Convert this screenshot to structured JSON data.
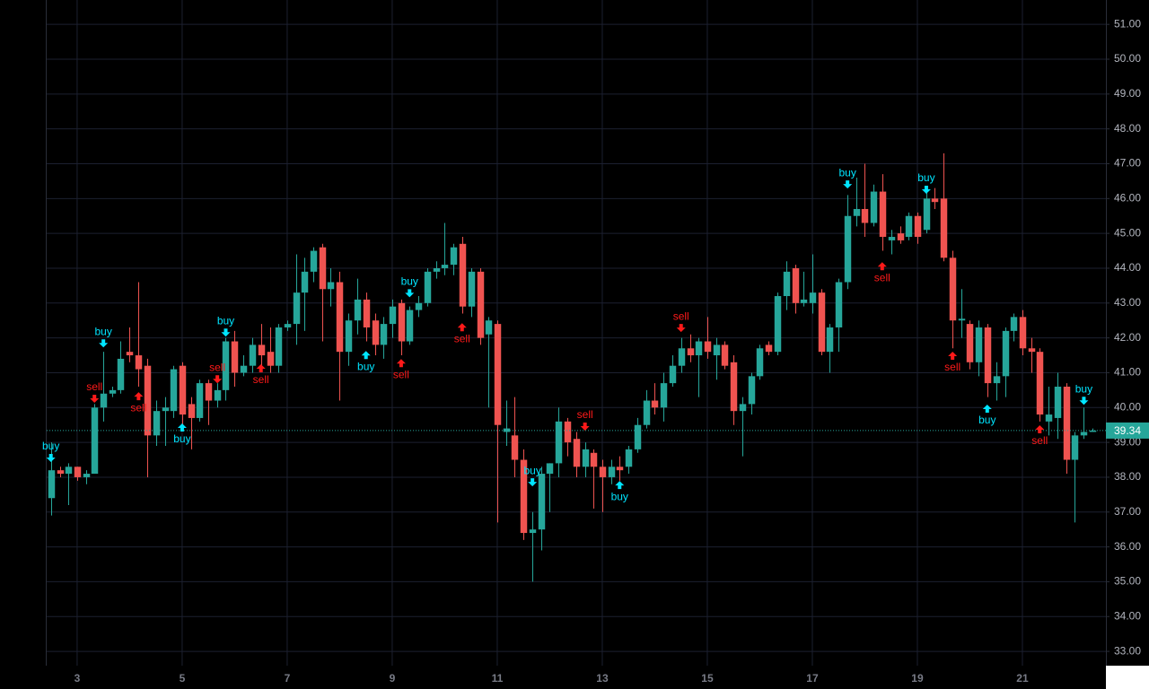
{
  "chart_data": {
    "type": "candlestick",
    "up_color": "#26a69a",
    "down_color": "#ef5350",
    "buy_color": "#00e5ff",
    "sell_color": "#ff1a1a",
    "grid": true,
    "xlim": [
      2.42,
      22.59
    ],
    "ylim": [
      32.59,
      51.7
    ],
    "xticks": [
      3,
      5,
      7,
      9,
      11,
      13,
      15,
      17,
      19,
      21
    ],
    "yticks": [
      {
        "value": 33,
        "label": "33.00"
      },
      {
        "value": 34,
        "label": "34.00"
      },
      {
        "value": 35,
        "label": "35.00"
      },
      {
        "value": 36,
        "label": "36.00"
      },
      {
        "value": 37,
        "label": "37.00"
      },
      {
        "value": 38,
        "label": "38.00"
      },
      {
        "value": 39,
        "label": "39.00"
      },
      {
        "value": 40,
        "label": "40.00"
      },
      {
        "value": 41,
        "label": "41.00"
      },
      {
        "value": 42,
        "label": "42.00"
      },
      {
        "value": 43,
        "label": "43.00"
      },
      {
        "value": 44,
        "label": "44.00"
      },
      {
        "value": 45,
        "label": "45.00"
      },
      {
        "value": 46,
        "label": "46.00"
      },
      {
        "value": 47,
        "label": "47.00"
      },
      {
        "value": 48,
        "label": "48.00"
      },
      {
        "value": 49,
        "label": "49.00"
      },
      {
        "value": 50,
        "label": "50.00"
      },
      {
        "value": 51,
        "label": "51.00"
      }
    ],
    "last_price": 39.34,
    "x": [
      2.5,
      2.67,
      2.83,
      3,
      3.17,
      3.33,
      3.5,
      3.67,
      3.83,
      4,
      4.17,
      4.33,
      4.5,
      4.67,
      4.83,
      5,
      5.17,
      5.33,
      5.5,
      5.67,
      5.83,
      6,
      6.17,
      6.33,
      6.5,
      6.67,
      6.83,
      7,
      7.17,
      7.33,
      7.5,
      7.67,
      7.83,
      8,
      8.17,
      8.33,
      8.5,
      8.67,
      8.83,
      9,
      9.17,
      9.33,
      9.5,
      9.67,
      9.83,
      10,
      10.17,
      10.33,
      10.5,
      10.67,
      10.83,
      11,
      11.17,
      11.33,
      11.5,
      11.67,
      11.83,
      12,
      12.17,
      12.33,
      12.5,
      12.67,
      12.83,
      13,
      13.17,
      13.33,
      13.5,
      13.67,
      13.83,
      14,
      14.17,
      14.33,
      14.5,
      14.67,
      14.83,
      15,
      15.17,
      15.33,
      15.5,
      15.67,
      15.83,
      16,
      16.17,
      16.33,
      16.5,
      16.67,
      16.83,
      17,
      17.17,
      17.33,
      17.5,
      17.67,
      17.83,
      18,
      18.17,
      18.33,
      18.5,
      18.67,
      18.83,
      19,
      19.17,
      19.33,
      19.5,
      19.67,
      19.83,
      20,
      20.17,
      20.33,
      20.5,
      20.67,
      20.83,
      21,
      21.17,
      21.33,
      21.5,
      21.67,
      21.83,
      22,
      22.17,
      22.33
    ],
    "open": [
      37.4,
      38.2,
      38.1,
      38.3,
      38.0,
      38.1,
      40.0,
      40.4,
      40.5,
      41.6,
      41.5,
      41.2,
      39.2,
      39.9,
      39.9,
      41.2,
      40.1,
      39.7,
      40.7,
      40.2,
      40.5,
      41.9,
      41.0,
      41.2,
      41.8,
      41.6,
      41.2,
      42.3,
      42.4,
      43.3,
      43.9,
      44.6,
      43.4,
      43.6,
      41.6,
      42.5,
      43.1,
      42.5,
      41.8,
      42.4,
      43.0,
      41.9,
      42.8,
      43.0,
      43.9,
      44.0,
      44.1,
      44.7,
      42.9,
      43.9,
      42.1,
      42.4,
      39.3,
      39.2,
      38.5,
      36.4,
      36.5,
      38.1,
      38.4,
      39.6,
      39.1,
      38.3,
      38.7,
      38.3,
      38.0,
      38.3,
      38.3,
      38.8,
      39.5,
      40.2,
      40.0,
      40.7,
      41.2,
      41.7,
      41.5,
      41.9,
      41.5,
      41.8,
      41.3,
      39.9,
      40.1,
      40.9,
      41.8,
      41.6,
      43.2,
      44.0,
      43.0,
      43.0,
      43.3,
      41.6,
      42.3,
      43.6,
      45.5,
      45.7,
      45.3,
      46.2,
      44.8,
      45.0,
      44.9,
      45.5,
      45.1,
      46.0,
      46.0,
      44.3,
      42.5,
      42.4,
      41.3,
      42.3,
      40.7,
      40.9,
      42.2,
      42.6,
      41.7,
      41.6,
      39.6,
      39.7,
      40.6,
      38.5,
      39.2,
      39.3
    ],
    "high": [
      39.0,
      38.3,
      38.4,
      38.3,
      38.2,
      40.1,
      41.6,
      40.6,
      41.9,
      42.3,
      43.6,
      41.4,
      40.2,
      40.3,
      41.2,
      41.3,
      40.3,
      40.8,
      40.8,
      40.7,
      42.0,
      42.2,
      41.5,
      42.0,
      42.4,
      42.3,
      42.4,
      42.5,
      44.4,
      44.3,
      44.6,
      44.7,
      44.0,
      43.9,
      42.7,
      43.7,
      43.3,
      42.7,
      42.6,
      43.1,
      43.1,
      42.9,
      43.2,
      44.0,
      44.2,
      45.3,
      44.7,
      44.9,
      44.0,
      44.0,
      42.6,
      42.5,
      40.2,
      40.3,
      38.8,
      37.0,
      38.3,
      38.4,
      40.0,
      39.7,
      39.3,
      39.0,
      38.8,
      38.5,
      38.5,
      38.6,
      38.9,
      39.7,
      40.5,
      40.7,
      41.0,
      41.5,
      42.0,
      42.1,
      42.0,
      42.6,
      42.0,
      41.9,
      41.5,
      40.3,
      41.0,
      41.8,
      41.9,
      43.3,
      44.2,
      44.1,
      43.9,
      44.4,
      43.4,
      42.4,
      43.7,
      46.1,
      46.6,
      47.0,
      46.4,
      46.7,
      45.1,
      45.2,
      45.6,
      45.6,
      46.2,
      46.3,
      47.3,
      44.5,
      43.4,
      42.5,
      42.5,
      42.4,
      41.3,
      42.3,
      42.7,
      42.8,
      42.0,
      41.7,
      40.6,
      41.0,
      40.7,
      39.3,
      40.0,
      39.4
    ],
    "low": [
      36.9,
      38.0,
      37.2,
      37.9,
      37.8,
      38.1,
      39.6,
      40.3,
      40.4,
      41.3,
      40.6,
      38.0,
      38.9,
      38.9,
      39.7,
      39.5,
      38.8,
      39.6,
      39.5,
      40.0,
      40.2,
      40.6,
      40.9,
      41.0,
      41.2,
      41.0,
      41.0,
      42.2,
      41.8,
      42.2,
      43.6,
      41.9,
      42.9,
      40.2,
      41.2,
      42.1,
      41.9,
      41.5,
      41.4,
      42.0,
      41.5,
      41.8,
      42.6,
      42.9,
      43.7,
      43.8,
      43.8,
      42.7,
      42.6,
      41.8,
      40.0,
      36.7,
      38.9,
      38.0,
      36.2,
      35.0,
      35.9,
      37.0,
      38.0,
      38.6,
      38.0,
      38.0,
      37.1,
      37.0,
      37.8,
      37.9,
      38.1,
      38.7,
      39.4,
      39.8,
      39.6,
      40.6,
      41.0,
      41.3,
      40.3,
      41.4,
      40.8,
      41.1,
      39.5,
      38.6,
      39.8,
      40.8,
      41.5,
      41.5,
      42.8,
      42.7,
      42.9,
      42.7,
      41.5,
      41.0,
      41.6,
      43.4,
      45.2,
      44.9,
      45.2,
      44.5,
      44.4,
      44.7,
      44.8,
      44.7,
      45.0,
      45.7,
      44.2,
      41.7,
      42.0,
      41.1,
      40.9,
      40.3,
      40.2,
      40.3,
      41.9,
      41.5,
      41.0,
      39.6,
      39.2,
      39.1,
      38.1,
      36.7,
      39.1,
      39.3
    ],
    "close": [
      38.2,
      38.1,
      38.3,
      38.0,
      38.1,
      40.0,
      40.4,
      40.5,
      41.4,
      41.5,
      41.1,
      39.2,
      39.9,
      40.0,
      41.1,
      39.8,
      39.7,
      40.7,
      40.2,
      40.5,
      41.9,
      41.0,
      41.2,
      41.8,
      41.5,
      41.2,
      42.3,
      42.4,
      43.3,
      43.9,
      44.5,
      43.4,
      43.6,
      41.6,
      42.5,
      43.1,
      42.3,
      41.8,
      42.4,
      42.9,
      41.9,
      42.8,
      43.0,
      43.9,
      44.0,
      44.1,
      44.6,
      42.9,
      43.9,
      42.0,
      42.5,
      39.5,
      39.4,
      38.5,
      36.4,
      36.5,
      38.1,
      38.4,
      39.6,
      39.0,
      38.3,
      38.8,
      38.3,
      38.0,
      38.3,
      38.2,
      38.8,
      39.5,
      40.2,
      40.0,
      40.7,
      41.2,
      41.7,
      41.5,
      41.9,
      41.6,
      41.8,
      41.2,
      39.9,
      40.1,
      40.9,
      41.7,
      41.6,
      43.2,
      43.9,
      43.0,
      43.1,
      43.3,
      41.6,
      42.3,
      43.6,
      45.5,
      45.7,
      45.3,
      46.2,
      44.9,
      44.9,
      44.8,
      45.5,
      44.9,
      46.0,
      45.9,
      44.3,
      42.5,
      42.55,
      41.3,
      42.3,
      40.7,
      40.9,
      42.2,
      42.6,
      41.7,
      41.6,
      39.8,
      39.8,
      40.6,
      38.5,
      39.2,
      39.3,
      39.34
    ],
    "signals": [
      {
        "label": "buy",
        "x": 2.5,
        "y": 38.54,
        "position": "above"
      },
      {
        "label": "sell",
        "x": 3.33,
        "y": 40.24,
        "position": "above"
      },
      {
        "label": "buy",
        "x": 3.5,
        "y": 41.83,
        "position": "above"
      },
      {
        "label": "sell",
        "x": 4.17,
        "y": 40.34,
        "position": "below"
      },
      {
        "label": "buy",
        "x": 5,
        "y": 39.44,
        "position": "below"
      },
      {
        "label": "sell",
        "x": 5.67,
        "y": 40.8,
        "position": "above"
      },
      {
        "label": "buy",
        "x": 5.83,
        "y": 42.14,
        "position": "above"
      },
      {
        "label": "sell",
        "x": 6.5,
        "y": 41.14,
        "position": "below"
      },
      {
        "label": "buy",
        "x": 8.5,
        "y": 41.52,
        "position": "below"
      },
      {
        "label": "sell",
        "x": 9.17,
        "y": 41.29,
        "position": "below"
      },
      {
        "label": "buy",
        "x": 9.33,
        "y": 43.27,
        "position": "above"
      },
      {
        "label": "sell",
        "x": 10.33,
        "y": 42.32,
        "position": "below"
      },
      {
        "label": "buy",
        "x": 11.67,
        "y": 37.84,
        "position": "above"
      },
      {
        "label": "sell",
        "x": 12.67,
        "y": 39.44,
        "position": "above"
      },
      {
        "label": "buy",
        "x": 13.33,
        "y": 37.79,
        "position": "below"
      },
      {
        "label": "sell",
        "x": 14.5,
        "y": 42.27,
        "position": "above"
      },
      {
        "label": "buy",
        "x": 17.67,
        "y": 46.39,
        "position": "above"
      },
      {
        "label": "sell",
        "x": 18.33,
        "y": 44.07,
        "position": "below"
      },
      {
        "label": "buy",
        "x": 19.17,
        "y": 46.24,
        "position": "above"
      },
      {
        "label": "sell",
        "x": 19.67,
        "y": 41.5,
        "position": "below"
      },
      {
        "label": "buy",
        "x": 20.33,
        "y": 39.98,
        "position": "below"
      },
      {
        "label": "sell",
        "x": 21.33,
        "y": 39.39,
        "position": "below"
      },
      {
        "label": "buy",
        "x": 22.17,
        "y": 40.18,
        "position": "above"
      }
    ]
  }
}
